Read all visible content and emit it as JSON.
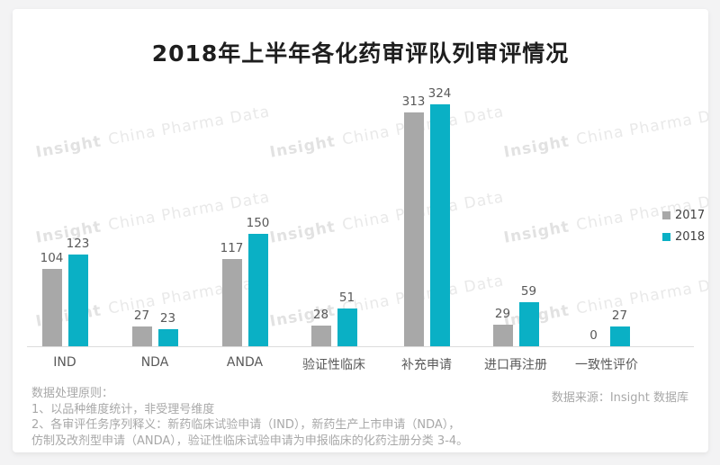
{
  "title": "2018年上半年各化药审评队列审评情况",
  "watermark": {
    "brand": "Insight",
    "rest": "China Pharma Data"
  },
  "chart_data": {
    "type": "bar",
    "title": "2018年上半年各化药审评队列审评情况",
    "categories": [
      "IND",
      "NDA",
      "ANDA",
      "验证性临床",
      "补充申请",
      "进口再注册",
      "一致性评价"
    ],
    "series": [
      {
        "name": "2017",
        "color": "#a8a8a8",
        "values": [
          104,
          27,
          117,
          28,
          313,
          29,
          0
        ]
      },
      {
        "name": "2018",
        "color": "#0ab0c5",
        "values": [
          123,
          23,
          150,
          51,
          324,
          59,
          27
        ]
      }
    ],
    "xlabel": "",
    "ylabel": "",
    "ylim": [
      0,
      324
    ],
    "grid": false,
    "legend_position": "right",
    "value_labels": true
  },
  "legend": {
    "items": [
      {
        "label": "2017",
        "color": "#a8a8a8"
      },
      {
        "label": "2018",
        "color": "#0ab0c5"
      }
    ]
  },
  "footer": {
    "left_lines": [
      "数据处理原则：",
      "1、以品种维度统计，非受理号维度",
      "2、各审评任务序列释义：新药临床试验申请（IND），新药生产上市申请（NDA），",
      "仿制及改剂型申请（ANDA），验证性临床试验申请为申报临床的化药注册分类 3-4。"
    ],
    "source": "数据来源：Insight 数据库"
  }
}
